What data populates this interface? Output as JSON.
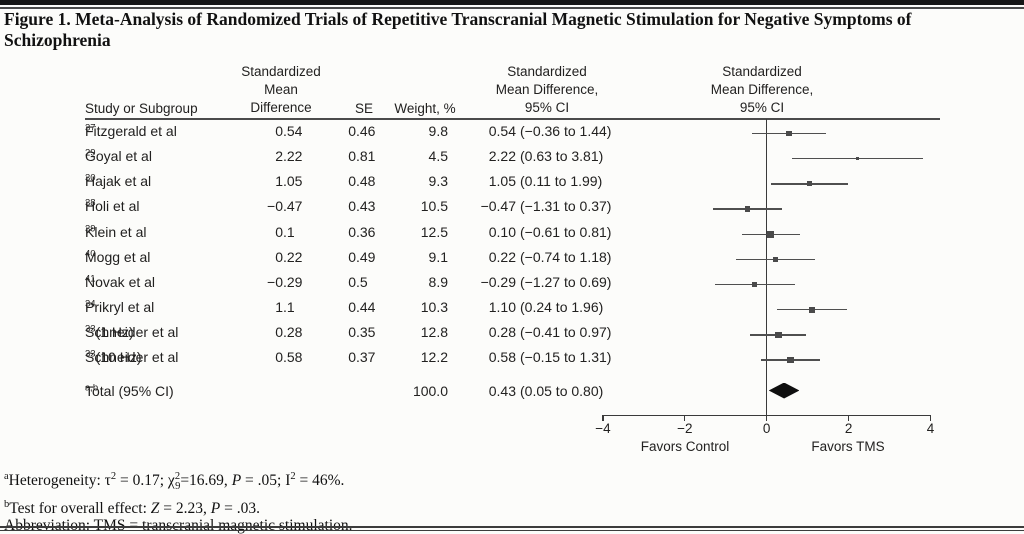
{
  "figure": {
    "title": "Figure 1. Meta-Analysis of Randomized Trials of Repetitive Transcranial Magnetic Stimulation for Negative Symptoms of Schizophrenia"
  },
  "table": {
    "headers": {
      "study": "Study or Subgroup",
      "smd_lines": [
        "Standardized",
        "Mean",
        "Difference"
      ],
      "se": "SE",
      "weight": "Weight, %",
      "ci_lines": [
        "Standardized",
        "Mean Difference,",
        "95% CI"
      ],
      "plot_lines": [
        "Standardized",
        "Mean Difference,",
        "95% CI"
      ]
    },
    "rows": [
      {
        "study": "Fitzgerald et al",
        "ref": "37",
        "suffix": "",
        "smd": "0.54",
        "se": "0.46",
        "weight": "9.8",
        "ci_value": "0.54",
        "ci_range": "(−0.36 to 1.44)"
      },
      {
        "study": "Goyal et al",
        "ref": "29",
        "suffix": "",
        "smd": "2.22",
        "se": "0.81",
        "weight": "4.5",
        "ci_value": "2.22",
        "ci_range": "(0.63 to 3.81)"
      },
      {
        "study": "Hajak et al",
        "ref": "30",
        "suffix": "",
        "smd": "1.05",
        "se": "0.48",
        "weight": "9.3",
        "ci_value": "1.05",
        "ci_range": "(0.11 to 1.99)"
      },
      {
        "study": "Holi et al",
        "ref": "38",
        "suffix": "",
        "smd": "−0.47",
        "se": "0.43",
        "weight": "10.5",
        "ci_value": "−0.47",
        "ci_range": "(−1.31 to 0.37)"
      },
      {
        "study": "Klein et al",
        "ref": "39",
        "suffix": "",
        "smd": "0.1",
        "se": "0.36",
        "weight": "12.5",
        "ci_value": "0.10",
        "ci_range": "(−0.61 to 0.81)"
      },
      {
        "study": "Mogg et al",
        "ref": "40",
        "suffix": "",
        "smd": "0.22",
        "se": "0.49",
        "weight": "9.1",
        "ci_value": "0.22",
        "ci_range": "(−0.74 to 1.18)"
      },
      {
        "study": "Novak et al",
        "ref": "41",
        "suffix": "",
        "smd": "−0.29",
        "se": "0.5",
        "weight": "8.9",
        "ci_value": "−0.29",
        "ci_range": "(−1.27 to 0.69)"
      },
      {
        "study": "Prikryl et al",
        "ref": "34",
        "suffix": "",
        "smd": "1.1",
        "se": "0.44",
        "weight": "10.3",
        "ci_value": "1.10",
        "ci_range": "(0.24 to 1.96)"
      },
      {
        "study": "Schneider et al",
        "ref": "33",
        "suffix": " (1 Hz)",
        "smd": "0.28",
        "se": "0.35",
        "weight": "12.8",
        "ci_value": "0.28",
        "ci_range": "(−0.41 to 0.97)"
      },
      {
        "study": "Schneider et al",
        "ref": "33",
        "suffix": " (10 Hz)",
        "smd": "0.58",
        "se": "0.37",
        "weight": "12.2",
        "ci_value": "0.58",
        "ci_range": "(−0.15 to 1.31)"
      }
    ],
    "total": {
      "label": "Total (95% CI)",
      "ref": "a,b",
      "weight": "100.0",
      "ci_value": "0.43",
      "ci_range": "(0.05 to 0.80)"
    }
  },
  "chart_data": {
    "type": "scatter",
    "subtype": "forest-plot",
    "title": "Standardized Mean Difference, 95% CI",
    "xlabel": "Standardized Mean Difference",
    "xlim": [
      -4,
      4
    ],
    "ticks": [
      {
        "v": -4,
        "label": "−4"
      },
      {
        "v": -2,
        "label": "−2"
      },
      {
        "v": 0,
        "label": "0"
      },
      {
        "v": 2,
        "label": "2"
      },
      {
        "v": 4,
        "label": "4"
      }
    ],
    "x_annotations": {
      "left": "Favors Control",
      "right": "Favors TMS"
    },
    "studies": [
      {
        "name": "Fitzgerald et al 37",
        "est": 0.54,
        "lo": -0.36,
        "hi": 1.44,
        "weight": 9.8
      },
      {
        "name": "Goyal et al 29",
        "est": 2.22,
        "lo": 0.63,
        "hi": 3.81,
        "weight": 4.5
      },
      {
        "name": "Hajak et al 30",
        "est": 1.05,
        "lo": 0.11,
        "hi": 1.99,
        "weight": 9.3
      },
      {
        "name": "Holi et al 38",
        "est": -0.47,
        "lo": -1.31,
        "hi": 0.37,
        "weight": 10.5
      },
      {
        "name": "Klein et al 39",
        "est": 0.1,
        "lo": -0.61,
        "hi": 0.81,
        "weight": 12.5
      },
      {
        "name": "Mogg et al 40",
        "est": 0.22,
        "lo": -0.74,
        "hi": 1.18,
        "weight": 9.1
      },
      {
        "name": "Novak et al 41",
        "est": -0.29,
        "lo": -1.27,
        "hi": 0.69,
        "weight": 8.9
      },
      {
        "name": "Prikryl et al 34",
        "est": 1.1,
        "lo": 0.24,
        "hi": 1.96,
        "weight": 10.3
      },
      {
        "name": "Schneider et al 33 (1 Hz)",
        "est": 0.28,
        "lo": -0.41,
        "hi": 0.97,
        "weight": 12.8
      },
      {
        "name": "Schneider et al 33 (10 Hz)",
        "est": 0.58,
        "lo": -0.15,
        "hi": 1.31,
        "weight": 12.2
      }
    ],
    "total": {
      "name": "Total (95% CI)",
      "est": 0.43,
      "lo": 0.05,
      "hi": 0.8,
      "weight": 100.0
    }
  },
  "footnotes": [
    [
      {
        "t": "a",
        "s": "sup"
      },
      {
        "t": "Heterogeneity: τ"
      },
      {
        "t": "2",
        "s": "sup"
      },
      {
        "t": " = 0.17; χ"
      },
      {
        "t": "2",
        "s": "sup"
      },
      {
        "t": "9",
        "s": "sub",
        "tight": true
      },
      {
        "t": "=16.69, "
      },
      {
        "t": "P",
        "s": "i"
      },
      {
        "t": " = .05; I"
      },
      {
        "t": "2",
        "s": "sup"
      },
      {
        "t": " = 46%."
      }
    ],
    [
      {
        "t": "b",
        "s": "sup"
      },
      {
        "t": "Test for overall effect: "
      },
      {
        "t": "Z",
        "s": "i"
      },
      {
        "t": " = 2.23, "
      },
      {
        "t": "P",
        "s": "i"
      },
      {
        "t": " = .03."
      }
    ],
    [
      {
        "t": "Abbreviation: TMS = transcranial magnetic stimulation."
      }
    ]
  ]
}
